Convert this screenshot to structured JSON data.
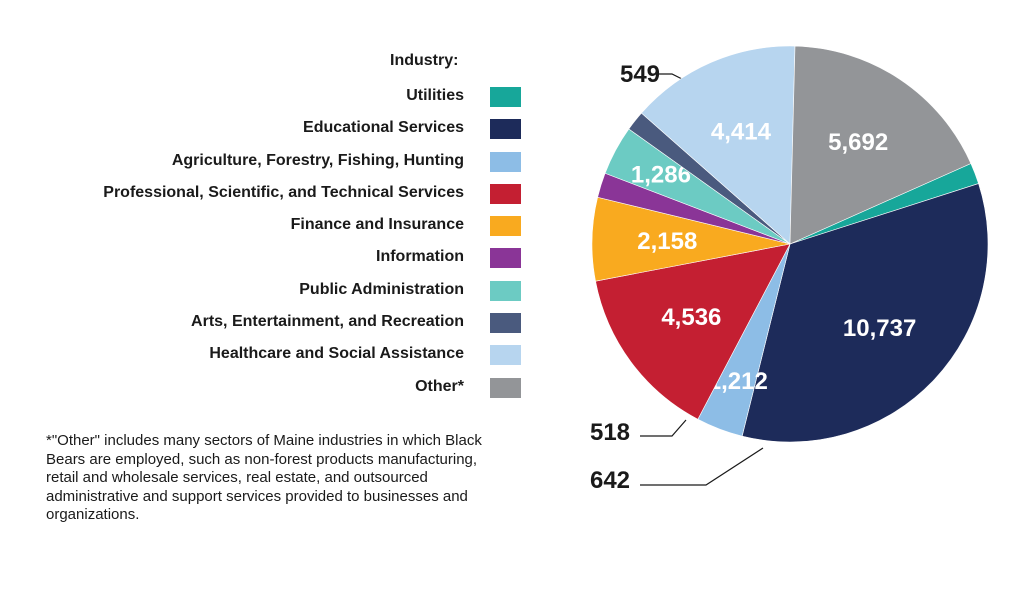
{
  "legend": {
    "title": "Industry:"
  },
  "footnote": "*\"Other\" includes many sectors of Maine industries in which Black Bears are employed, such as non-forest products manufacturing, retail and wholesale services, real estate, and outsourced administrative and support services provided to businesses and organizations.",
  "chart_data": {
    "type": "pie",
    "series": [
      {
        "name": "Utilities",
        "value": 549,
        "label": "549",
        "color": "#17a79a",
        "label_placement": "outside"
      },
      {
        "name": "Educational Services",
        "value": 10737,
        "label": "10,737",
        "color": "#1d2b5a",
        "label_placement": "inside"
      },
      {
        "name": "Agriculture, Forestry, Fishing, Hunting",
        "value": 1212,
        "label": "1,212",
        "color": "#8dbde6",
        "label_placement": "inside"
      },
      {
        "name": "Professional, Scientific, and Technical Services",
        "value": 4536,
        "label": "4,536",
        "color": "#c41f32",
        "label_placement": "inside"
      },
      {
        "name": "Finance and Insurance",
        "value": 2158,
        "label": "2,158",
        "color": "#f9aa1f",
        "label_placement": "inside"
      },
      {
        "name": "Information",
        "value": 642,
        "label": "642",
        "color": "#8a3597",
        "label_placement": "outside"
      },
      {
        "name": "Public Administration",
        "value": 1286,
        "label": "1,286",
        "color": "#6ccbc3",
        "label_placement": "inside"
      },
      {
        "name": "Arts, Entertainment, and Recreation",
        "value": 518,
        "label": "518",
        "color": "#4a5a7e",
        "label_placement": "outside"
      },
      {
        "name": "Healthcare and Social Assistance",
        "value": 4414,
        "label": "4,414",
        "color": "#b7d5ef",
        "label_placement": "inside"
      },
      {
        "name": "Other*",
        "value": 5692,
        "label": "5,692",
        "color": "#939598",
        "label_placement": "inside"
      }
    ],
    "start_angle_deg": 66,
    "legend_position": "left"
  }
}
